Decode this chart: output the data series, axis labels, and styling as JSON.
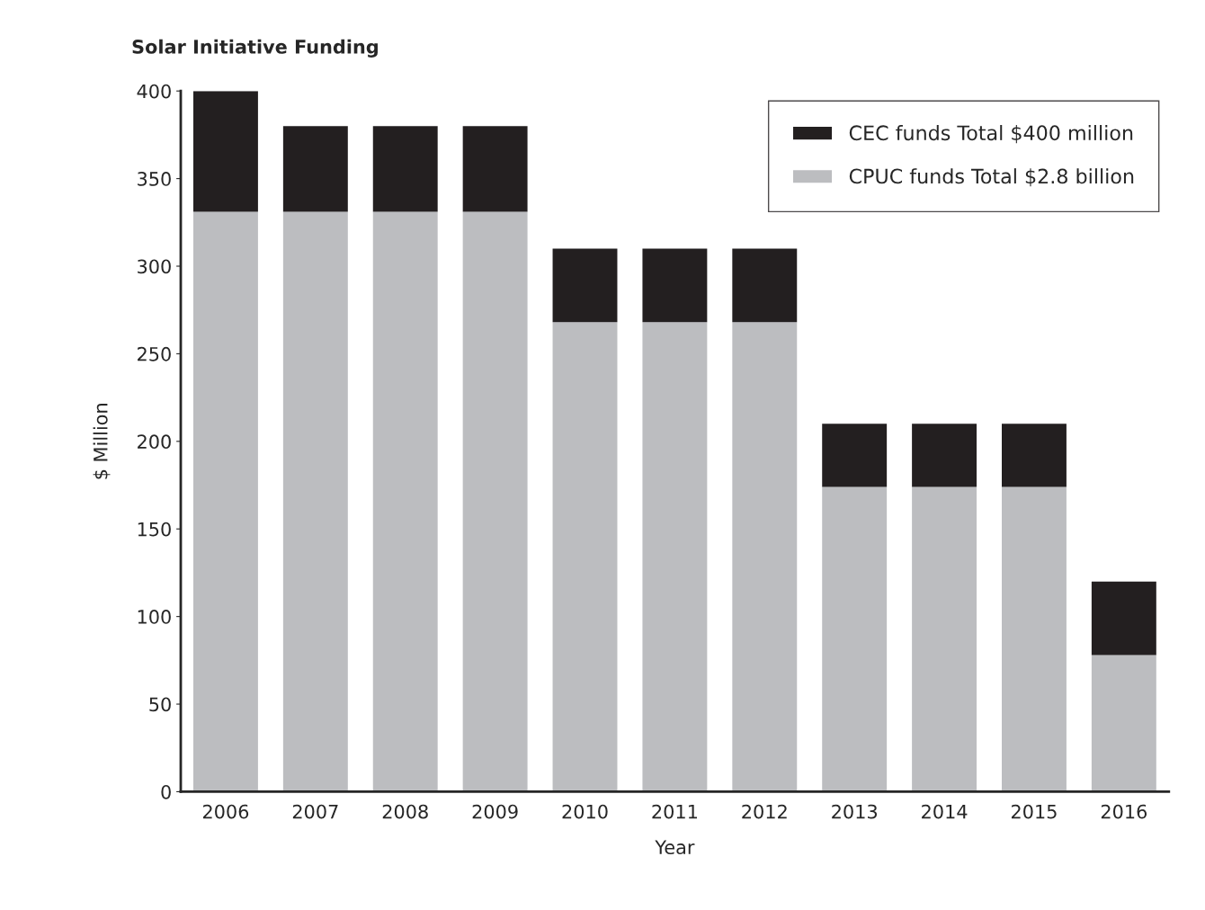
{
  "chart_data": {
    "type": "bar",
    "title": "Solar Initiative Funding",
    "xlabel": "Year",
    "ylabel": "$ Million",
    "categories": [
      "2006",
      "2007",
      "2008",
      "2009",
      "2010",
      "2011",
      "2012",
      "2013",
      "2014",
      "2015",
      "2016"
    ],
    "stacked": true,
    "series": [
      {
        "name": "CPUC funds Total $2.8 billion",
        "color": "#bcbdc0",
        "values": [
          331,
          331,
          331,
          331,
          268,
          268,
          268,
          174,
          174,
          174,
          78
        ]
      },
      {
        "name": "CEC funds Total $400 million",
        "color": "#231f20",
        "values": [
          69,
          49,
          49,
          49,
          42,
          42,
          42,
          36,
          36,
          36,
          42
        ]
      }
    ],
    "ylim": [
      0,
      400
    ],
    "yticks": [
      0,
      50,
      100,
      150,
      200,
      250,
      300,
      350,
      400
    ],
    "grid": false,
    "legend": "top right"
  }
}
